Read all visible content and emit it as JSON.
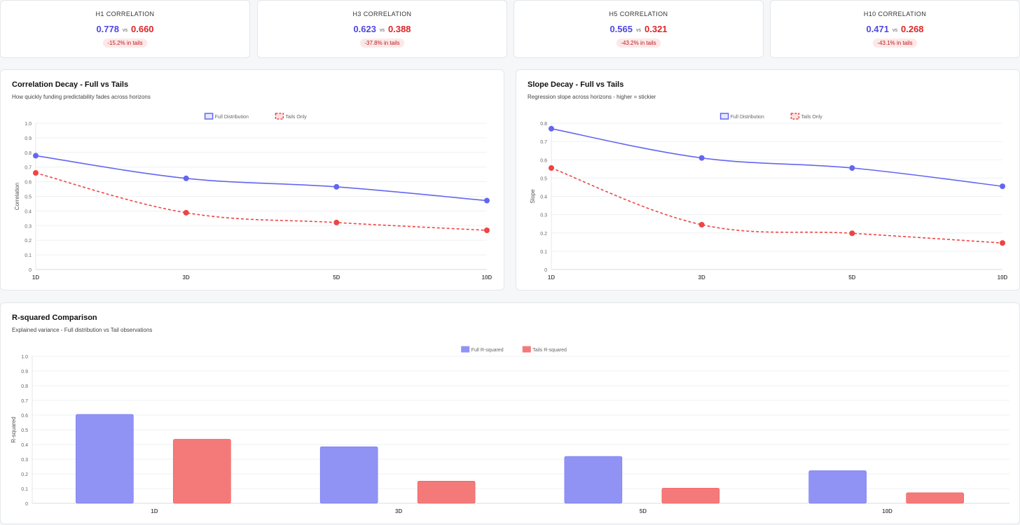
{
  "stats": [
    {
      "label": "H1 CORRELATION",
      "full": "0.778",
      "vs": "vs",
      "tails": "0.660",
      "delta": "-15.2% in tails"
    },
    {
      "label": "H3 CORRELATION",
      "full": "0.623",
      "vs": "vs",
      "tails": "0.388",
      "delta": "-37.8% in tails"
    },
    {
      "label": "H5 CORRELATION",
      "full": "0.565",
      "vs": "vs",
      "tails": "0.321",
      "delta": "-43.2% in tails"
    },
    {
      "label": "H10 CORRELATION",
      "full": "0.471",
      "vs": "vs",
      "tails": "0.268",
      "delta": "-43.1% in tails"
    }
  ],
  "colors": {
    "full": "#6366f1",
    "tails": "#ef4444",
    "full_bar": "#9193f4",
    "tails_bar": "#f47a7a"
  },
  "chart_data": [
    {
      "type": "line",
      "title": "Correlation Decay - Full vs Tails",
      "subtitle": "How quickly funding predictability fades across horizons",
      "ylabel": "Correlation",
      "categories": [
        "1D",
        "3D",
        "5D",
        "10D"
      ],
      "ylim": [
        0,
        1.0
      ],
      "yticks": [
        "0",
        "0.1",
        "0.2",
        "0.3",
        "0.4",
        "0.5",
        "0.6",
        "0.7",
        "0.8",
        "0.9",
        "1.0"
      ],
      "legend_position": "top",
      "series": [
        {
          "name": "Full Distribution",
          "values": [
            0.778,
            0.623,
            0.565,
            0.471
          ],
          "style": "solid"
        },
        {
          "name": "Tails Only",
          "values": [
            0.66,
            0.388,
            0.321,
            0.268
          ],
          "style": "dashed"
        }
      ]
    },
    {
      "type": "line",
      "title": "Slope Decay - Full vs Tails",
      "subtitle": "Regression slope across horizons - higher = stickier",
      "ylabel": "Slope",
      "categories": [
        "1D",
        "3D",
        "5D",
        "10D"
      ],
      "ylim": [
        0,
        0.8
      ],
      "yticks": [
        "0",
        "0.1",
        "0.2",
        "0.3",
        "0.4",
        "0.5",
        "0.6",
        "0.7",
        "0.8"
      ],
      "legend_position": "top",
      "series": [
        {
          "name": "Full Distribution",
          "values": [
            0.77,
            0.61,
            0.555,
            0.455
          ],
          "style": "solid"
        },
        {
          "name": "Tails Only",
          "values": [
            0.555,
            0.245,
            0.198,
            0.145
          ],
          "style": "dashed"
        }
      ]
    },
    {
      "type": "bar",
      "title": "R-squared Comparison",
      "subtitle": "Explained variance - Full distribution vs Tail observations",
      "ylabel": "R-squared",
      "categories": [
        "1D",
        "3D",
        "5D",
        "10D"
      ],
      "ylim": [
        0,
        1.0
      ],
      "yticks": [
        "0",
        "0.1",
        "0.2",
        "0.3",
        "0.4",
        "0.5",
        "0.6",
        "0.7",
        "0.8",
        "0.9",
        "1.0"
      ],
      "legend_position": "top",
      "series": [
        {
          "name": "Full R-squared",
          "values": [
            0.605,
            0.385,
            0.319,
            0.222
          ]
        },
        {
          "name": "Tails R-squared",
          "values": [
            0.436,
            0.151,
            0.103,
            0.072
          ]
        }
      ]
    }
  ]
}
